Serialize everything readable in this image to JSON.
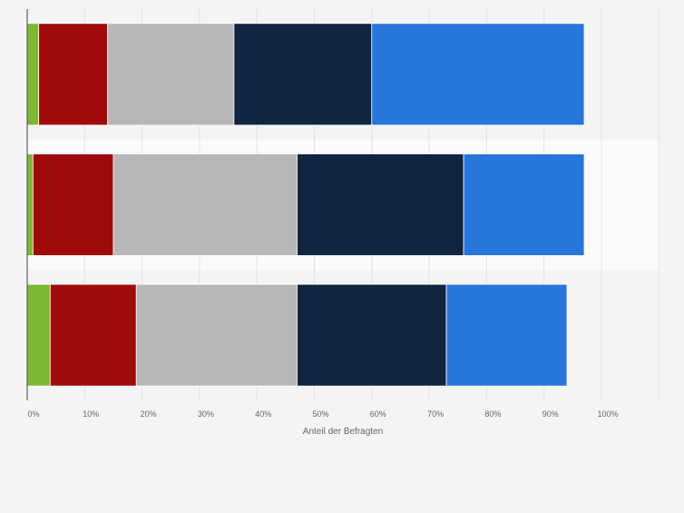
{
  "chart_data": {
    "type": "bar",
    "orientation": "horizontal",
    "stacked": true,
    "title": "",
    "xlabel": "Anteil der Befragten",
    "ylabel": "",
    "xlim": [
      0,
      110
    ],
    "x_ticks": [
      "0%",
      "10%",
      "20%",
      "30%",
      "40%",
      "50%",
      "60%",
      "70%",
      "80%",
      "90%",
      "100%"
    ],
    "categories": [
      "",
      "",
      ""
    ],
    "grid": true,
    "legend": "none",
    "series": [
      {
        "color": "#7cb82f",
        "values": [
          2,
          1,
          4
        ]
      },
      {
        "color": "#a10a0a",
        "values": [
          12,
          14,
          15
        ]
      },
      {
        "color": "#b7b7b7",
        "values": [
          22,
          32,
          28
        ]
      },
      {
        "color": "#0f2540",
        "values": [
          24,
          29,
          26
        ]
      },
      {
        "color": "#2776db",
        "values": [
          37,
          21,
          21
        ]
      }
    ]
  }
}
